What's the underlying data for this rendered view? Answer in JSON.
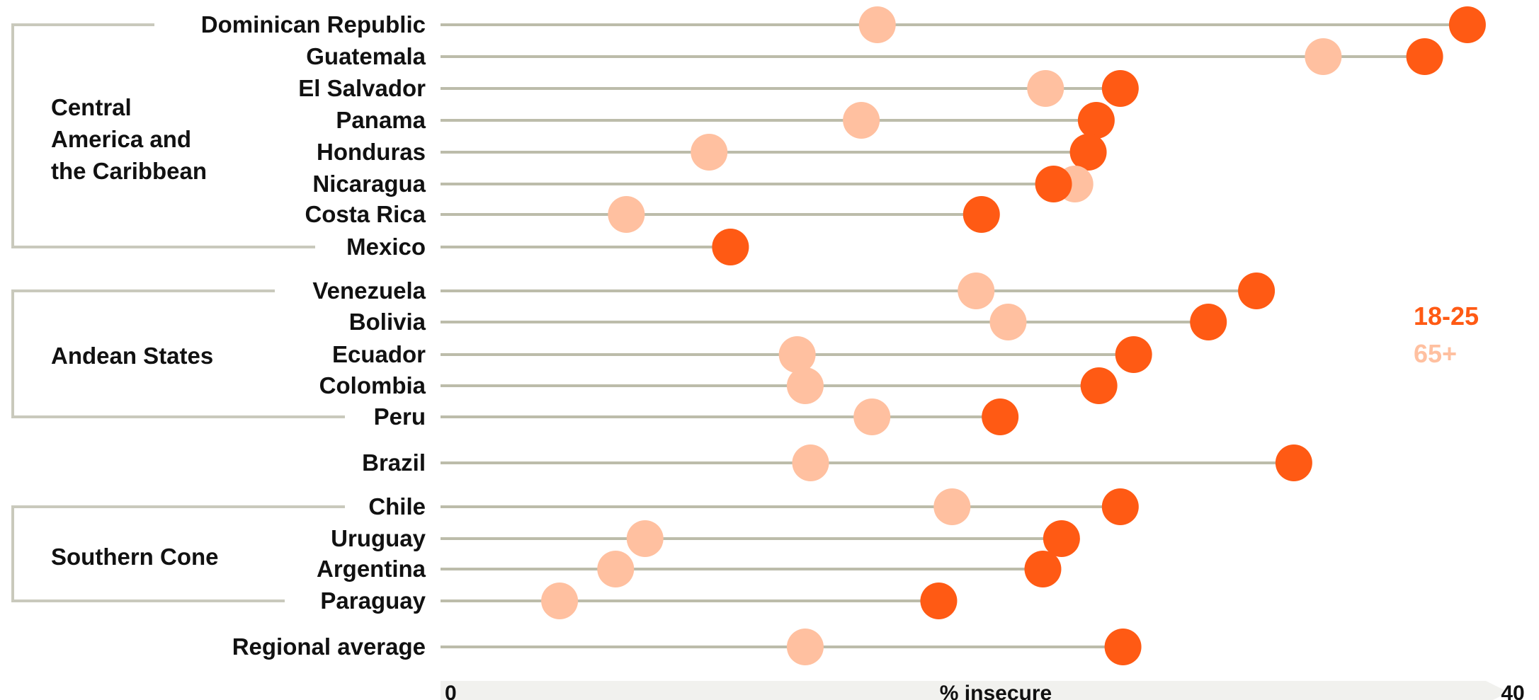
{
  "chart_data": {
    "type": "scatter",
    "title": "",
    "xlabel": "% insecure",
    "ylabel": "",
    "xlim": [
      0,
      40
    ],
    "x_tick_labels": [
      "0",
      "40"
    ],
    "grid": false,
    "legend_position": "right",
    "series": [
      {
        "name": "18-25",
        "color": "#ff5a14"
      },
      {
        "name": "65+",
        "color": "#ffc0a0"
      }
    ],
    "groups": [
      {
        "label_lines": [
          "Central",
          "America and",
          "the Caribbean"
        ],
        "rows": [
          "Dominican Republic",
          "Guatemala",
          "El Salvador",
          "Panama",
          "Honduras",
          "Nicaragua",
          "Costa Rica",
          "Mexico"
        ]
      },
      {
        "label_lines": [
          "Andean States"
        ],
        "rows": [
          "Venezuela",
          "Bolivia",
          "Ecuador",
          "Colombia",
          "Peru"
        ]
      },
      {
        "label_lines": [
          "Southern Cone"
        ],
        "rows": [
          "Chile",
          "Uruguay",
          "Argentina",
          "Paraguay"
        ]
      }
    ],
    "rows": [
      {
        "label": "Dominican Republic",
        "young": 38.3,
        "old": 16.2
      },
      {
        "label": "Guatemala",
        "young": 36.7,
        "old": 32.9
      },
      {
        "label": "El Salvador",
        "young": 25.3,
        "old": 22.5
      },
      {
        "label": "Panama",
        "young": 24.4,
        "old": 15.6
      },
      {
        "label": "Honduras",
        "young": 24.1,
        "old": 9.9
      },
      {
        "label": "Nicaragua",
        "young": 22.8,
        "old": 23.6
      },
      {
        "label": "Costa Rica",
        "young": 20.1,
        "old": 6.8
      },
      {
        "label": "Mexico",
        "young": 10.7,
        "old": 10.7
      },
      {
        "label": "Venezuela",
        "young": 30.4,
        "old": 19.9
      },
      {
        "label": "Bolivia",
        "young": 28.6,
        "old": 21.1
      },
      {
        "label": "Ecuador",
        "young": 25.8,
        "old": 13.2
      },
      {
        "label": "Colombia",
        "young": 24.5,
        "old": 13.5
      },
      {
        "label": "Peru",
        "young": 20.8,
        "old": 16.0
      },
      {
        "label": "Brazil",
        "young": 31.8,
        "old": 13.7
      },
      {
        "label": "Chile",
        "young": 25.3,
        "old": 19.0
      },
      {
        "label": "Uruguay",
        "young": 23.1,
        "old": 7.5
      },
      {
        "label": "Argentina",
        "young": 22.4,
        "old": 6.4
      },
      {
        "label": "Paraguay",
        "young": 18.5,
        "old": 4.3
      },
      {
        "label": "Regional average",
        "young": 25.4,
        "old": 13.5
      }
    ]
  }
}
